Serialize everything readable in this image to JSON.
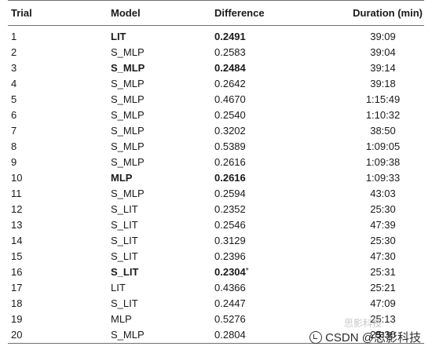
{
  "table": {
    "headers": {
      "trial": "Trial",
      "model": "Model",
      "difference": "Difference",
      "duration": "Duration (min)"
    },
    "rows": [
      {
        "trial": "1",
        "model": "LIT",
        "difference": "0.2491",
        "duration": "39:09",
        "bold": true,
        "note": ""
      },
      {
        "trial": "2",
        "model": "S_MLP",
        "difference": "0.2583",
        "duration": "39:04",
        "bold": false,
        "note": ""
      },
      {
        "trial": "3",
        "model": "S_MLP",
        "difference": "0.2484",
        "duration": "39:14",
        "bold": true,
        "note": ""
      },
      {
        "trial": "4",
        "model": "S_MLP",
        "difference": "0.2642",
        "duration": "39:18",
        "bold": false,
        "note": ""
      },
      {
        "trial": "5",
        "model": "S_MLP",
        "difference": "0.4670",
        "duration": "1:15:49",
        "bold": false,
        "note": ""
      },
      {
        "trial": "6",
        "model": "S_MLP",
        "difference": "0.2540",
        "duration": "1:10:32",
        "bold": false,
        "note": ""
      },
      {
        "trial": "7",
        "model": "S_MLP",
        "difference": "0.3202",
        "duration": "38:50",
        "bold": false,
        "note": ""
      },
      {
        "trial": "8",
        "model": "S_MLP",
        "difference": "0.5389",
        "duration": "1:09:05",
        "bold": false,
        "note": ""
      },
      {
        "trial": "9",
        "model": "S_MLP",
        "difference": "0.2616",
        "duration": "1:09:38",
        "bold": false,
        "note": ""
      },
      {
        "trial": "10",
        "model": "MLP",
        "difference": "0.2616",
        "duration": "1:09:33",
        "bold": true,
        "note": ""
      },
      {
        "trial": "11",
        "model": "S_MLP",
        "difference": "0.2594",
        "duration": "43:03",
        "bold": false,
        "note": ""
      },
      {
        "trial": "12",
        "model": "S_LIT",
        "difference": "0.2352",
        "duration": "25:30",
        "bold": false,
        "note": ""
      },
      {
        "trial": "13",
        "model": "S_LIT",
        "difference": "0.2546",
        "duration": "47:39",
        "bold": false,
        "note": ""
      },
      {
        "trial": "14",
        "model": "S_LIT",
        "difference": "0.3129",
        "duration": "25:30",
        "bold": false,
        "note": ""
      },
      {
        "trial": "15",
        "model": "S_LIT",
        "difference": "0.2396",
        "duration": "47:30",
        "bold": false,
        "note": ""
      },
      {
        "trial": "16",
        "model": "S_LIT",
        "difference": "0.2304",
        "duration": "25:31",
        "bold": true,
        "note": "*"
      },
      {
        "trial": "17",
        "model": "LIT",
        "difference": "0.4366",
        "duration": "25:21",
        "bold": false,
        "note": ""
      },
      {
        "trial": "18",
        "model": "S_LIT",
        "difference": "0.2447",
        "duration": "47:09",
        "bold": false,
        "note": ""
      },
      {
        "trial": "19",
        "model": "MLP",
        "difference": "0.5276",
        "duration": "25:13",
        "bold": false,
        "note": ""
      },
      {
        "trial": "20",
        "model": "S_MLP",
        "difference": "0.2804",
        "duration": "25:30",
        "bold": false,
        "note": ""
      }
    ]
  },
  "watermark": {
    "text": "CSDN @思影科技",
    "faint_text": "思影科技"
  }
}
